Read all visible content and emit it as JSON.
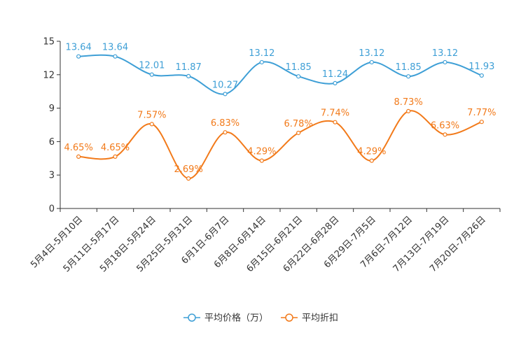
{
  "chart_data": {
    "type": "line",
    "title": "",
    "xlabel": "",
    "ylabel": "",
    "ylim": [
      0,
      15
    ],
    "yticks": [
      0,
      3,
      6,
      9,
      12,
      15
    ],
    "ytick_labels": [
      "0",
      "3",
      "6",
      "9",
      "12",
      "15"
    ],
    "grid": false,
    "smooth": true,
    "legend_position": "bottom-center",
    "categories": [
      "5月4日-5月10日",
      "5月11日-5月17日",
      "5月18日-5月24日",
      "5月25日-5月31日",
      "6月1日-6月7日",
      "6月8日-6月14日",
      "6月15日-6月21日",
      "6月22日-6月28日",
      "6月29日-7月5日",
      "7月6日-7月12日",
      "7月13日-7月19日",
      "7月20日-7月26日"
    ],
    "series": [
      {
        "name": "平均价格（万）",
        "color": "#3e9fd6",
        "values": [
          13.64,
          13.64,
          12.01,
          11.87,
          10.27,
          13.12,
          11.85,
          11.24,
          13.12,
          11.85,
          13.12,
          11.93
        ],
        "labels": [
          "13.64",
          "13.64",
          "12.01",
          "11.87",
          "10.27",
          "13.12",
          "11.85",
          "11.24",
          "13.12",
          "11.85",
          "13.12",
          "11.93"
        ]
      },
      {
        "name": "平均折扣",
        "color": "#f27a1a",
        "values": [
          4.65,
          4.65,
          7.57,
          2.69,
          6.83,
          4.29,
          6.78,
          7.74,
          4.29,
          8.73,
          6.63,
          7.77
        ],
        "labels": [
          "4.65%",
          "4.65%",
          "7.57%",
          "2.69%",
          "6.83%",
          "4.29%",
          "6.78%",
          "7.74%",
          "4.29%",
          "8.73%",
          "6.63%",
          "7.77%"
        ]
      }
    ]
  }
}
